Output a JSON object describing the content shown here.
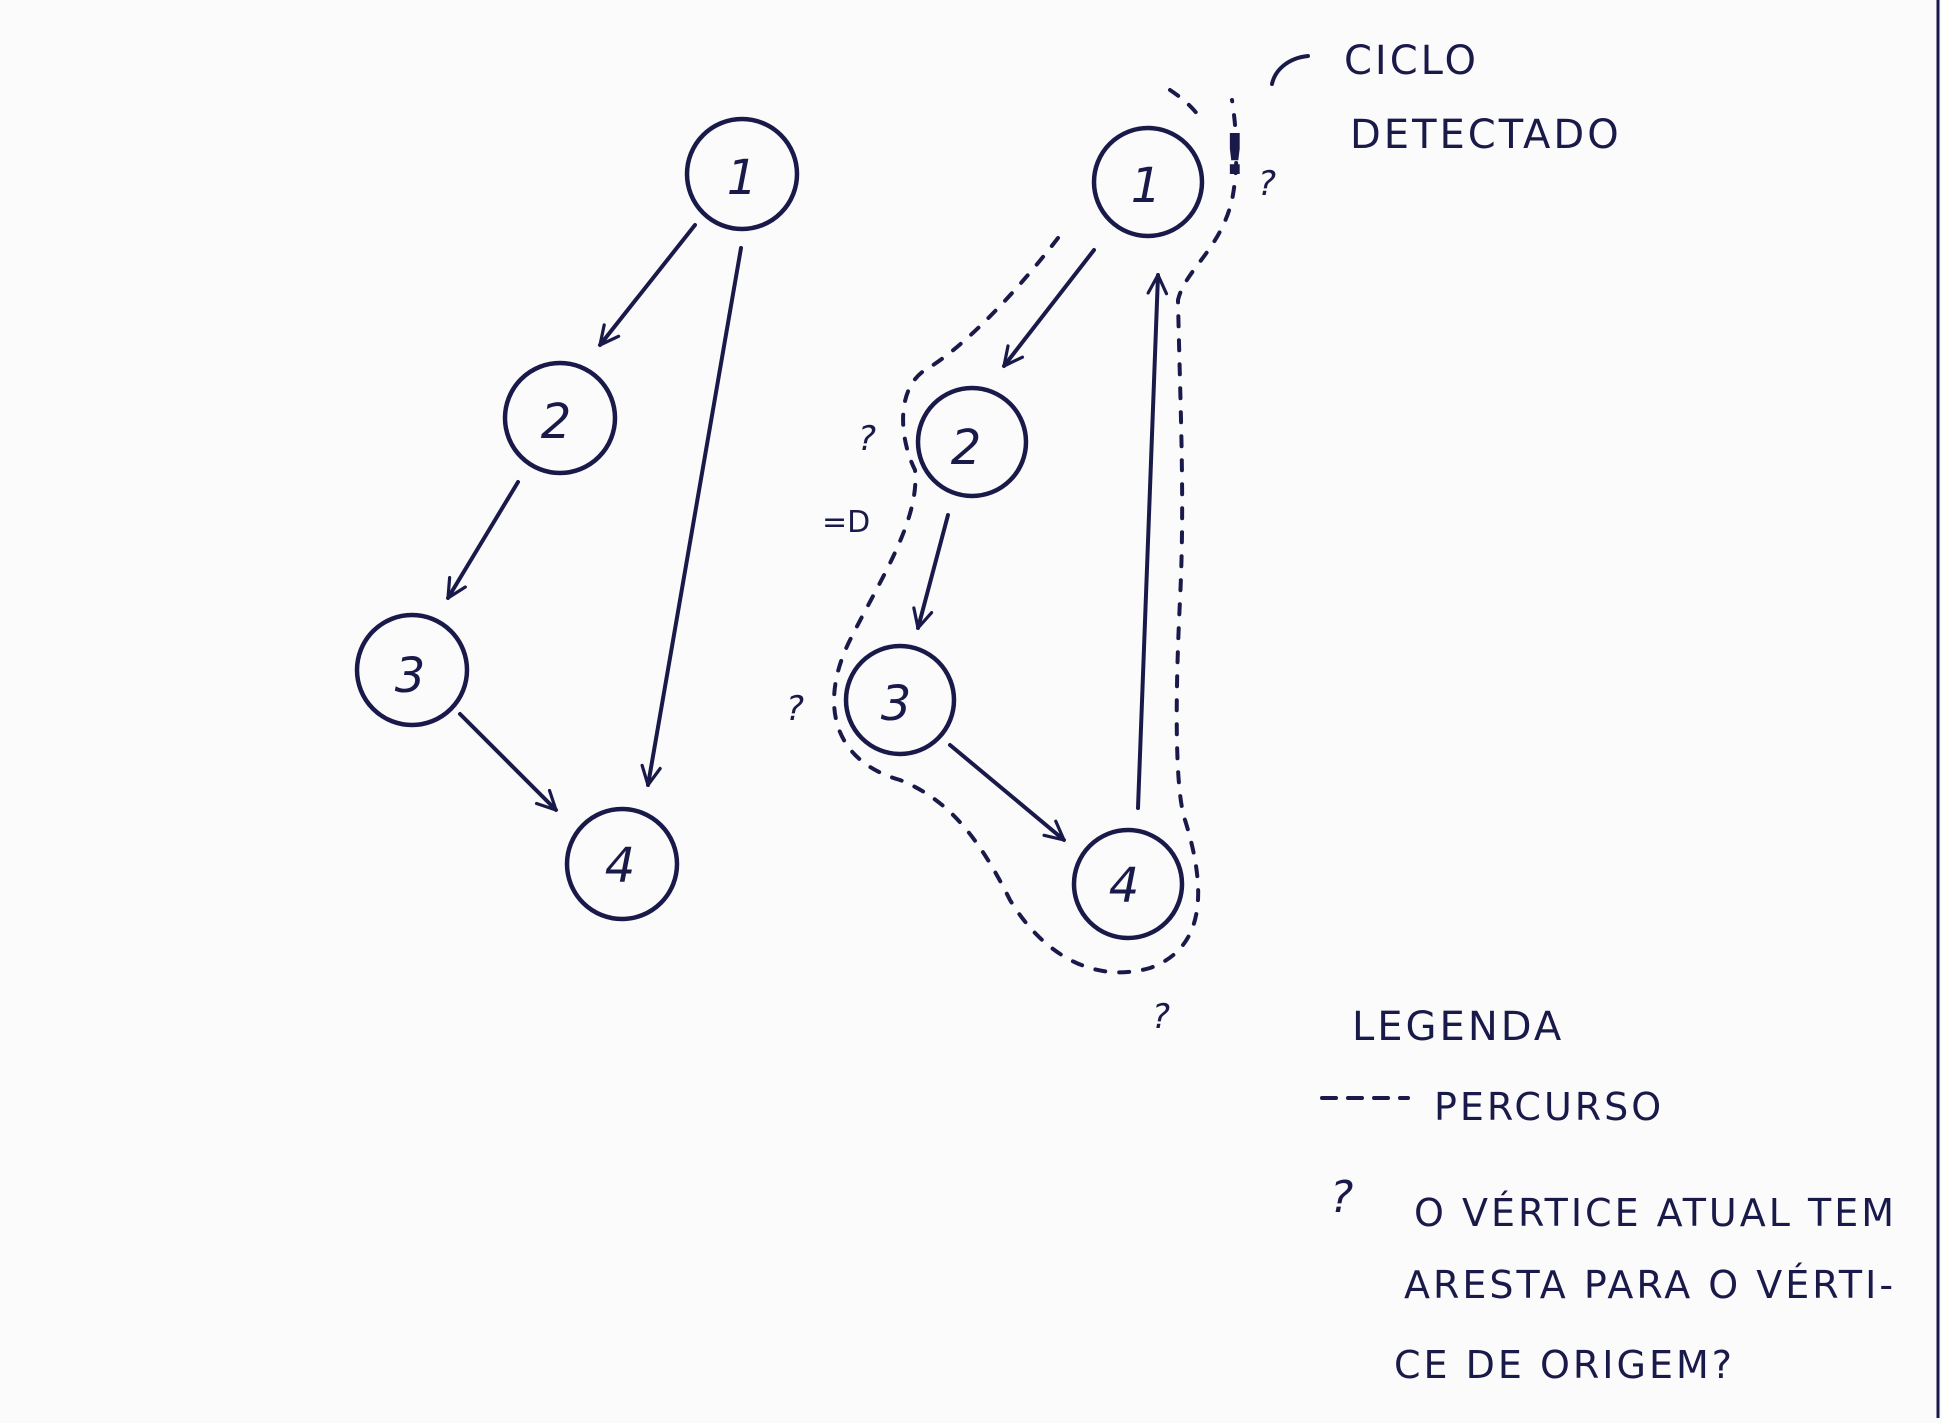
{
  "left_graph": {
    "nodes": [
      {
        "id": "n1",
        "label": "1"
      },
      {
        "id": "n2",
        "label": "2"
      },
      {
        "id": "n3",
        "label": "3"
      },
      {
        "id": "n4",
        "label": "4"
      }
    ]
  },
  "right_graph": {
    "nodes": [
      {
        "id": "n1",
        "label": "1"
      },
      {
        "id": "n2",
        "label": "2"
      },
      {
        "id": "n3",
        "label": "3"
      },
      {
        "id": "n4",
        "label": "4"
      }
    ],
    "question_marks": [
      "?",
      "?",
      "?",
      "?"
    ],
    "step_arrow": "=D",
    "cycle_mark": "!"
  },
  "cycle_note": {
    "line1": "CICLO",
    "line2": "DETECTADO"
  },
  "legend": {
    "title": "LEGENDA",
    "path_label": "PERCURSO",
    "question_symbol": "?",
    "question_line1": "O VÉRTICE ATUAL TEM",
    "question_line2": "ARESTA PARA O VÉRTI-",
    "question_line3": "CE DE ORIGEM?"
  }
}
